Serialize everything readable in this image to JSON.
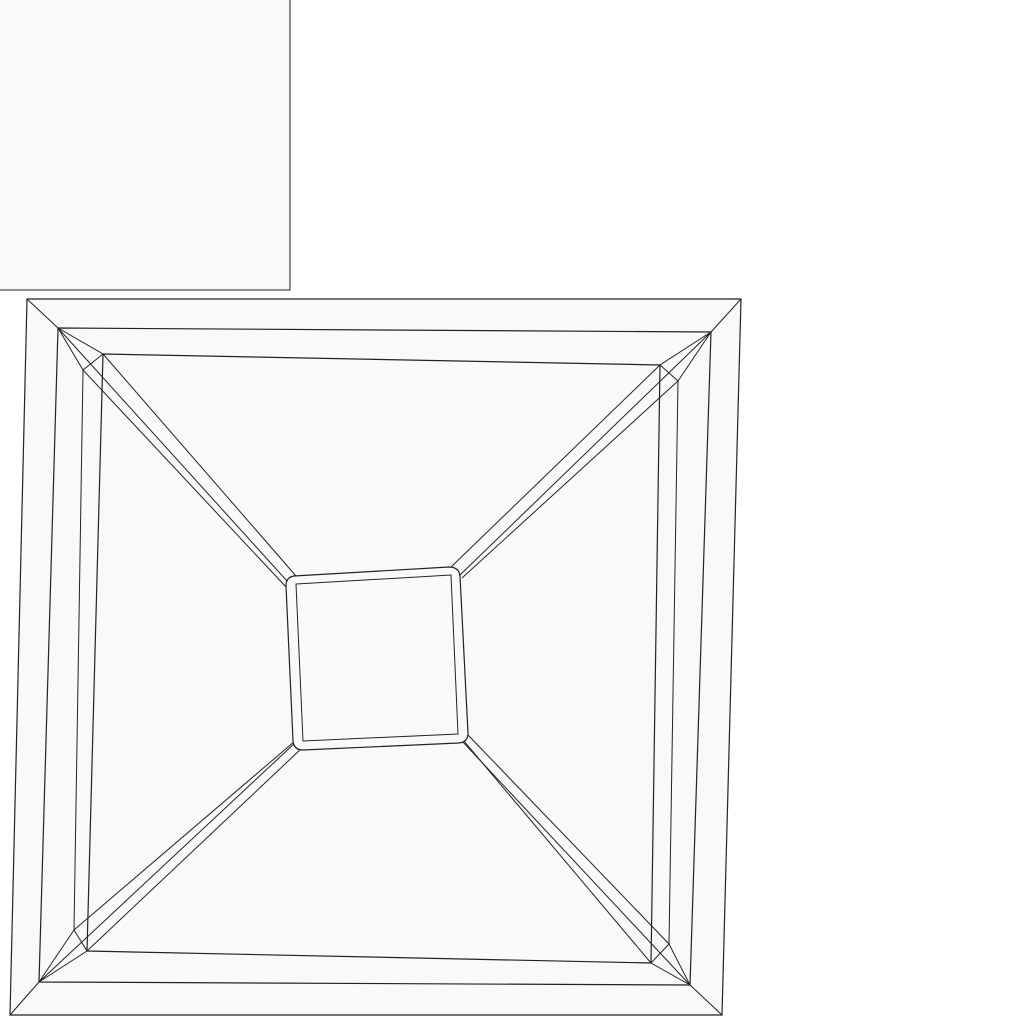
{
  "diagram": {
    "kind": "wireframe",
    "stroke_color": "#222222",
    "fill_color": "#f9f9f9",
    "background_color": "#ffffff",
    "views": [
      "preview-tile",
      "top-down-frustum-view"
    ]
  }
}
